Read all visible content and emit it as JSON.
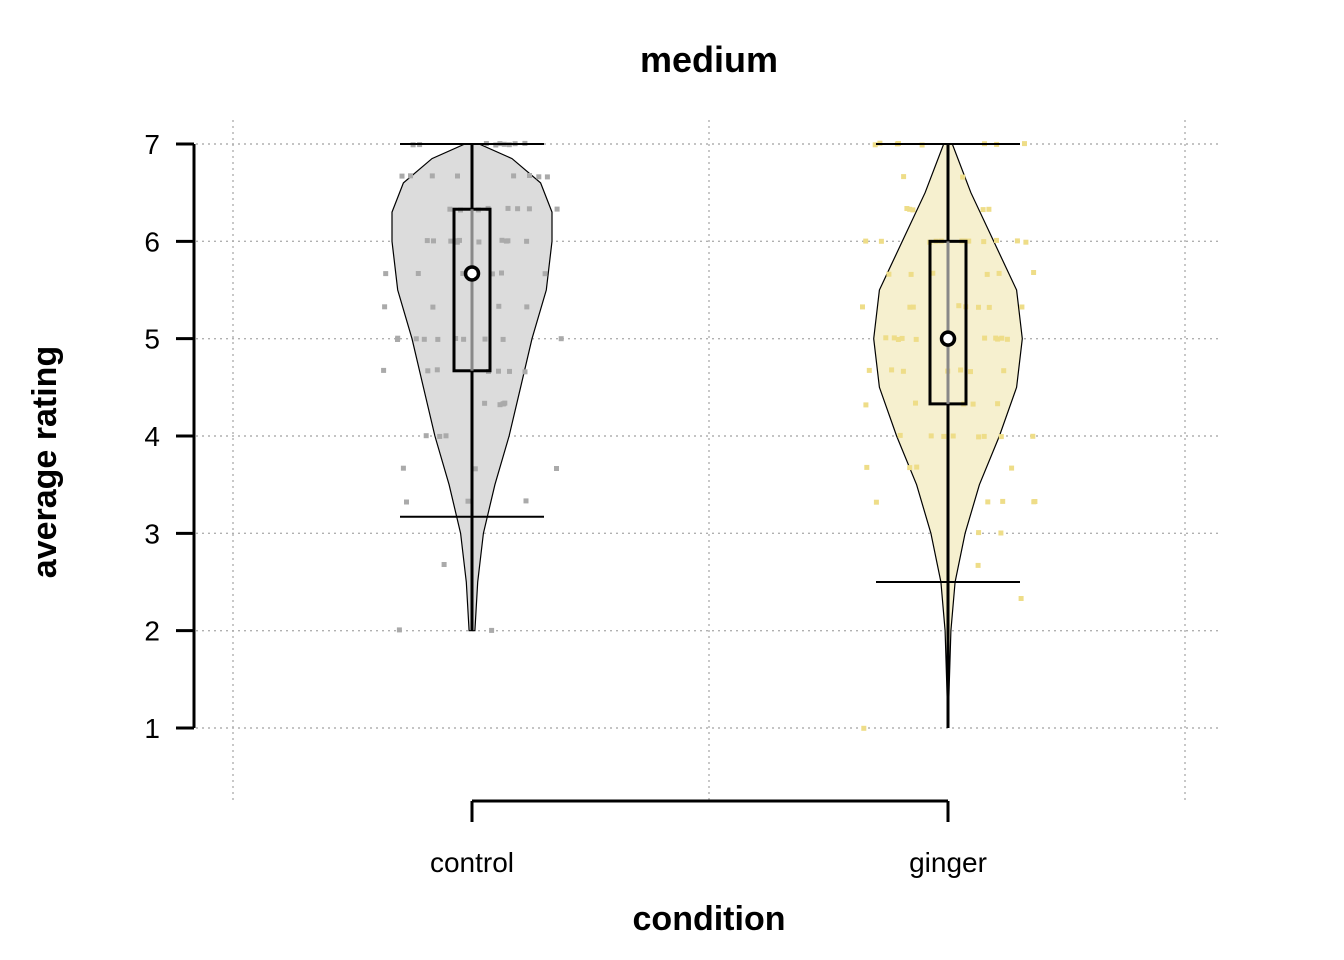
{
  "chart_data": {
    "type": "violin",
    "title": "medium",
    "xlabel": "condition",
    "ylabel": "average rating",
    "ylim": [
      1,
      7
    ],
    "yticks": [
      1,
      2,
      3,
      4,
      5,
      6,
      7
    ],
    "grid": true,
    "categories": [
      "control",
      "ginger"
    ],
    "groups": [
      {
        "name": "control",
        "fill": "#dcdcdc",
        "point_color": "#aaaaaa",
        "median": 5.67,
        "q1": 4.67,
        "q3": 6.33,
        "min": 2.0,
        "max": 7.0,
        "whisker_low": 3.17,
        "whisker_high": 7.0,
        "density": [
          [
            2.0,
            0.02
          ],
          [
            2.5,
            0.04
          ],
          [
            3.0,
            0.08
          ],
          [
            3.5,
            0.16
          ],
          [
            4.0,
            0.26
          ],
          [
            4.5,
            0.34
          ],
          [
            5.0,
            0.42
          ],
          [
            5.5,
            0.52
          ],
          [
            6.0,
            0.56
          ],
          [
            6.3,
            0.56
          ],
          [
            6.6,
            0.48
          ],
          [
            6.85,
            0.28
          ],
          [
            7.0,
            0.05
          ]
        ],
        "points": [
          7,
          7,
          7,
          7,
          7,
          7,
          7,
          7,
          7,
          6.67,
          6.67,
          6.67,
          6.67,
          6.67,
          6.67,
          6.67,
          6.67,
          6.33,
          6.33,
          6.33,
          6.33,
          6.33,
          6.33,
          6.33,
          6.33,
          6,
          6,
          6,
          6,
          6,
          6,
          6,
          6,
          6,
          6,
          6,
          5.67,
          5.67,
          5.67,
          5.67,
          5.67,
          5.67,
          5.67,
          5.33,
          5.33,
          5.33,
          5.33,
          5,
          5,
          5,
          5,
          5,
          5,
          5,
          5,
          5,
          5,
          4.67,
          4.67,
          4.67,
          4.67,
          4.67,
          4.67,
          4.67,
          4.33,
          4.33,
          4.33,
          4.33,
          4.33,
          4,
          4,
          4,
          3.67,
          3.67,
          3.67,
          3.33,
          3.33,
          3.33,
          2.67,
          2,
          2
        ]
      },
      {
        "name": "ginger",
        "fill": "#f6f0cf",
        "point_color": "#eedd88",
        "median": 5.0,
        "q1": 4.33,
        "q3": 6.0,
        "min": 1.0,
        "max": 7.0,
        "whisker_low": 2.5,
        "whisker_high": 7.0,
        "density": [
          [
            1.0,
            0.0
          ],
          [
            1.5,
            0.01
          ],
          [
            2.0,
            0.02
          ],
          [
            2.5,
            0.05
          ],
          [
            3.0,
            0.12
          ],
          [
            3.5,
            0.22
          ],
          [
            4.0,
            0.36
          ],
          [
            4.5,
            0.48
          ],
          [
            5.0,
            0.52
          ],
          [
            5.5,
            0.48
          ],
          [
            6.0,
            0.32
          ],
          [
            6.5,
            0.16
          ],
          [
            7.0,
            0.03
          ]
        ],
        "points": [
          7,
          7,
          7,
          7,
          7,
          7,
          7,
          7,
          6.67,
          6.67,
          6.33,
          6.33,
          6.33,
          6.33,
          6.33,
          6,
          6,
          6,
          6,
          6,
          6,
          6,
          6,
          6,
          6,
          6,
          6,
          5.67,
          5.67,
          5.67,
          5.67,
          5.67,
          5.67,
          5.33,
          5.33,
          5.33,
          5.33,
          5.33,
          5.33,
          5.33,
          5.33,
          5,
          5,
          5,
          5,
          5,
          5,
          5,
          5,
          5,
          5,
          5,
          5,
          4.67,
          4.67,
          4.67,
          4.67,
          4.67,
          4.67,
          4.67,
          4.33,
          4.33,
          4.33,
          4.33,
          4.33,
          4,
          4,
          4,
          4,
          4,
          4,
          4,
          4,
          3.67,
          3.67,
          3.67,
          3.67,
          3.33,
          3.33,
          3.33,
          3.33,
          3.33,
          3,
          3,
          2.67,
          2.33,
          1
        ]
      }
    ]
  }
}
